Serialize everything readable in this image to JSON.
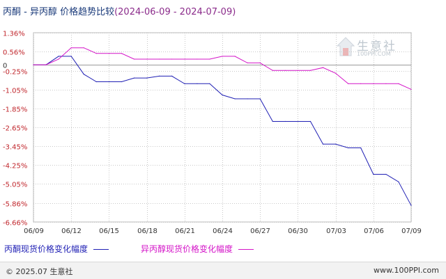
{
  "title": {
    "main": "丙酮 - 异丙醇 价格趋势比较",
    "range": "(2024-06-09 - 2024-07-09)"
  },
  "watermark": {
    "name": "生意社",
    "url": "100PPI.COM"
  },
  "footer": {
    "left": "© 2025.07 生意社",
    "right": "www.100PPI.com"
  },
  "colors": {
    "series_1": "#1f1fb4",
    "series_2": "#d414c8",
    "grid": "#c8c8c8",
    "axis_text": "#c0262c",
    "x_text": "#333333"
  },
  "chart_data": {
    "type": "line",
    "ylim": [
      -6.66,
      1.36
    ],
    "yticks": [
      1.36,
      0.56,
      0,
      -0.25,
      -1.05,
      -1.85,
      -2.65,
      -3.45,
      -4.25,
      -5.05,
      -5.86,
      -6.66
    ],
    "ytick_labels": [
      "1.36%",
      "0.56%",
      "0",
      "-0.25%",
      "-1.05%",
      "-1.85%",
      "-2.65%",
      "-3.45%",
      "-4.25%",
      "-5.05%",
      "-5.86%",
      "-6.66%"
    ],
    "x_start": "06/09",
    "x_end": "07/09",
    "xtick_labels": [
      "06/09",
      "06/12",
      "06/15",
      "06/18",
      "06/21",
      "06/24",
      "06/27",
      "06/30",
      "07/03",
      "07/06",
      "07/09"
    ],
    "grid": true,
    "legend_position": "bottom",
    "series": [
      {
        "name": "丙酮现货价格变化幅度",
        "color": "#1f1fb4",
        "points": [
          [
            "06/09",
            0
          ],
          [
            "06/10",
            0
          ],
          [
            "06/11",
            0.36
          ],
          [
            "06/12",
            0.36
          ],
          [
            "06/13",
            -0.4
          ],
          [
            "06/14",
            -0.72
          ],
          [
            "06/15",
            -0.72
          ],
          [
            "06/16",
            -0.72
          ],
          [
            "06/17",
            -0.56
          ],
          [
            "06/18",
            -0.56
          ],
          [
            "06/19",
            -0.48
          ],
          [
            "06/20",
            -0.48
          ],
          [
            "06/21",
            -0.8
          ],
          [
            "06/22",
            -0.8
          ],
          [
            "06/23",
            -0.8
          ],
          [
            "06/24",
            -1.28
          ],
          [
            "06/25",
            -1.44
          ],
          [
            "06/26",
            -1.44
          ],
          [
            "06/27",
            -1.44
          ],
          [
            "06/28",
            -2.4
          ],
          [
            "06/29",
            -2.4
          ],
          [
            "06/30",
            -2.4
          ],
          [
            "07/01",
            -2.4
          ],
          [
            "07/02",
            -3.36
          ],
          [
            "07/03",
            -3.36
          ],
          [
            "07/04",
            -3.52
          ],
          [
            "07/05",
            -3.52
          ],
          [
            "07/06",
            -4.64
          ],
          [
            "07/07",
            -4.64
          ],
          [
            "07/08",
            -4.96
          ],
          [
            "07/09",
            -5.96
          ]
        ]
      },
      {
        "name": "异丙醇现货价格变化幅度",
        "color": "#d414c8",
        "points": [
          [
            "06/09",
            0
          ],
          [
            "06/10",
            0
          ],
          [
            "06/11",
            0.24
          ],
          [
            "06/12",
            0.72
          ],
          [
            "06/13",
            0.72
          ],
          [
            "06/14",
            0.48
          ],
          [
            "06/15",
            0.48
          ],
          [
            "06/16",
            0.48
          ],
          [
            "06/17",
            0.24
          ],
          [
            "06/18",
            0.24
          ],
          [
            "06/19",
            0.24
          ],
          [
            "06/20",
            0.24
          ],
          [
            "06/21",
            0.24
          ],
          [
            "06/22",
            0.24
          ],
          [
            "06/23",
            0.24
          ],
          [
            "06/24",
            0.36
          ],
          [
            "06/25",
            0.36
          ],
          [
            "06/26",
            0.08
          ],
          [
            "06/27",
            0.08
          ],
          [
            "06/28",
            -0.24
          ],
          [
            "06/29",
            -0.24
          ],
          [
            "06/30",
            -0.24
          ],
          [
            "07/01",
            -0.24
          ],
          [
            "07/02",
            -0.12
          ],
          [
            "07/03",
            -0.36
          ],
          [
            "07/04",
            -0.8
          ],
          [
            "07/05",
            -0.8
          ],
          [
            "07/06",
            -0.8
          ],
          [
            "07/07",
            -0.8
          ],
          [
            "07/08",
            -0.8
          ],
          [
            "07/09",
            -1.04
          ]
        ]
      }
    ]
  }
}
